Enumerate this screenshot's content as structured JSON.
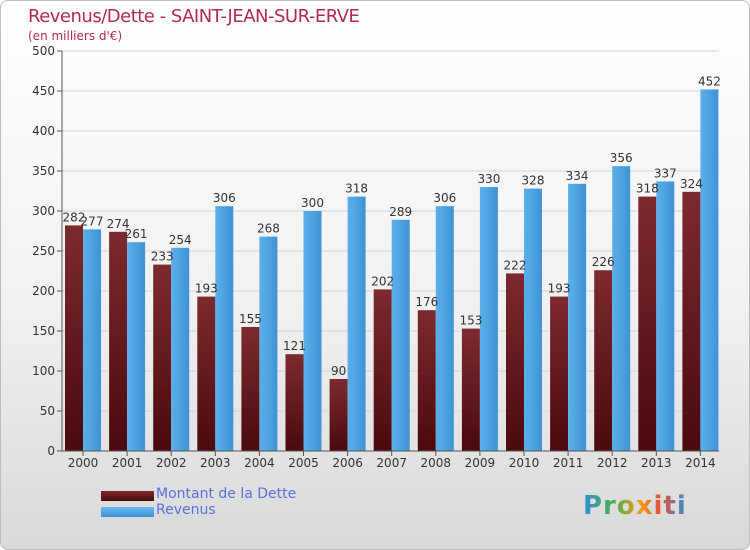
{
  "title": "Revenus/Dette - SAINT-JEAN-SUR-ERVE",
  "subtitle": "(en milliers d'€)",
  "logo": "Proxiti",
  "colors": {
    "dette": "#6b1a1f",
    "revenus": "#4ea3e0",
    "title": "#b02a52",
    "legend_text": "#5b6fe0"
  },
  "chart_data": {
    "type": "bar",
    "title": "Revenus/Dette - SAINT-JEAN-SUR-ERVE",
    "ylabel": "(en milliers d'€)",
    "categories": [
      "2000",
      "2001",
      "2002",
      "2003",
      "2004",
      "2005",
      "2006",
      "2007",
      "2008",
      "2009",
      "2010",
      "2011",
      "2012",
      "2013",
      "2014"
    ],
    "series": [
      {
        "name": "Montant de la Dette",
        "values": [
          282,
          274,
          233,
          193,
          155,
          121,
          90,
          202,
          176,
          153,
          222,
          193,
          226,
          318,
          324
        ]
      },
      {
        "name": "Revenus",
        "values": [
          277,
          261,
          254,
          306,
          268,
          300,
          318,
          289,
          306,
          330,
          328,
          334,
          356,
          337,
          452
        ]
      }
    ],
    "ylim": [
      0,
      500
    ],
    "yticks": [
      0,
      50,
      100,
      150,
      200,
      250,
      300,
      350,
      400,
      450,
      500
    ],
    "grid": true,
    "legend": "bottom-left"
  }
}
